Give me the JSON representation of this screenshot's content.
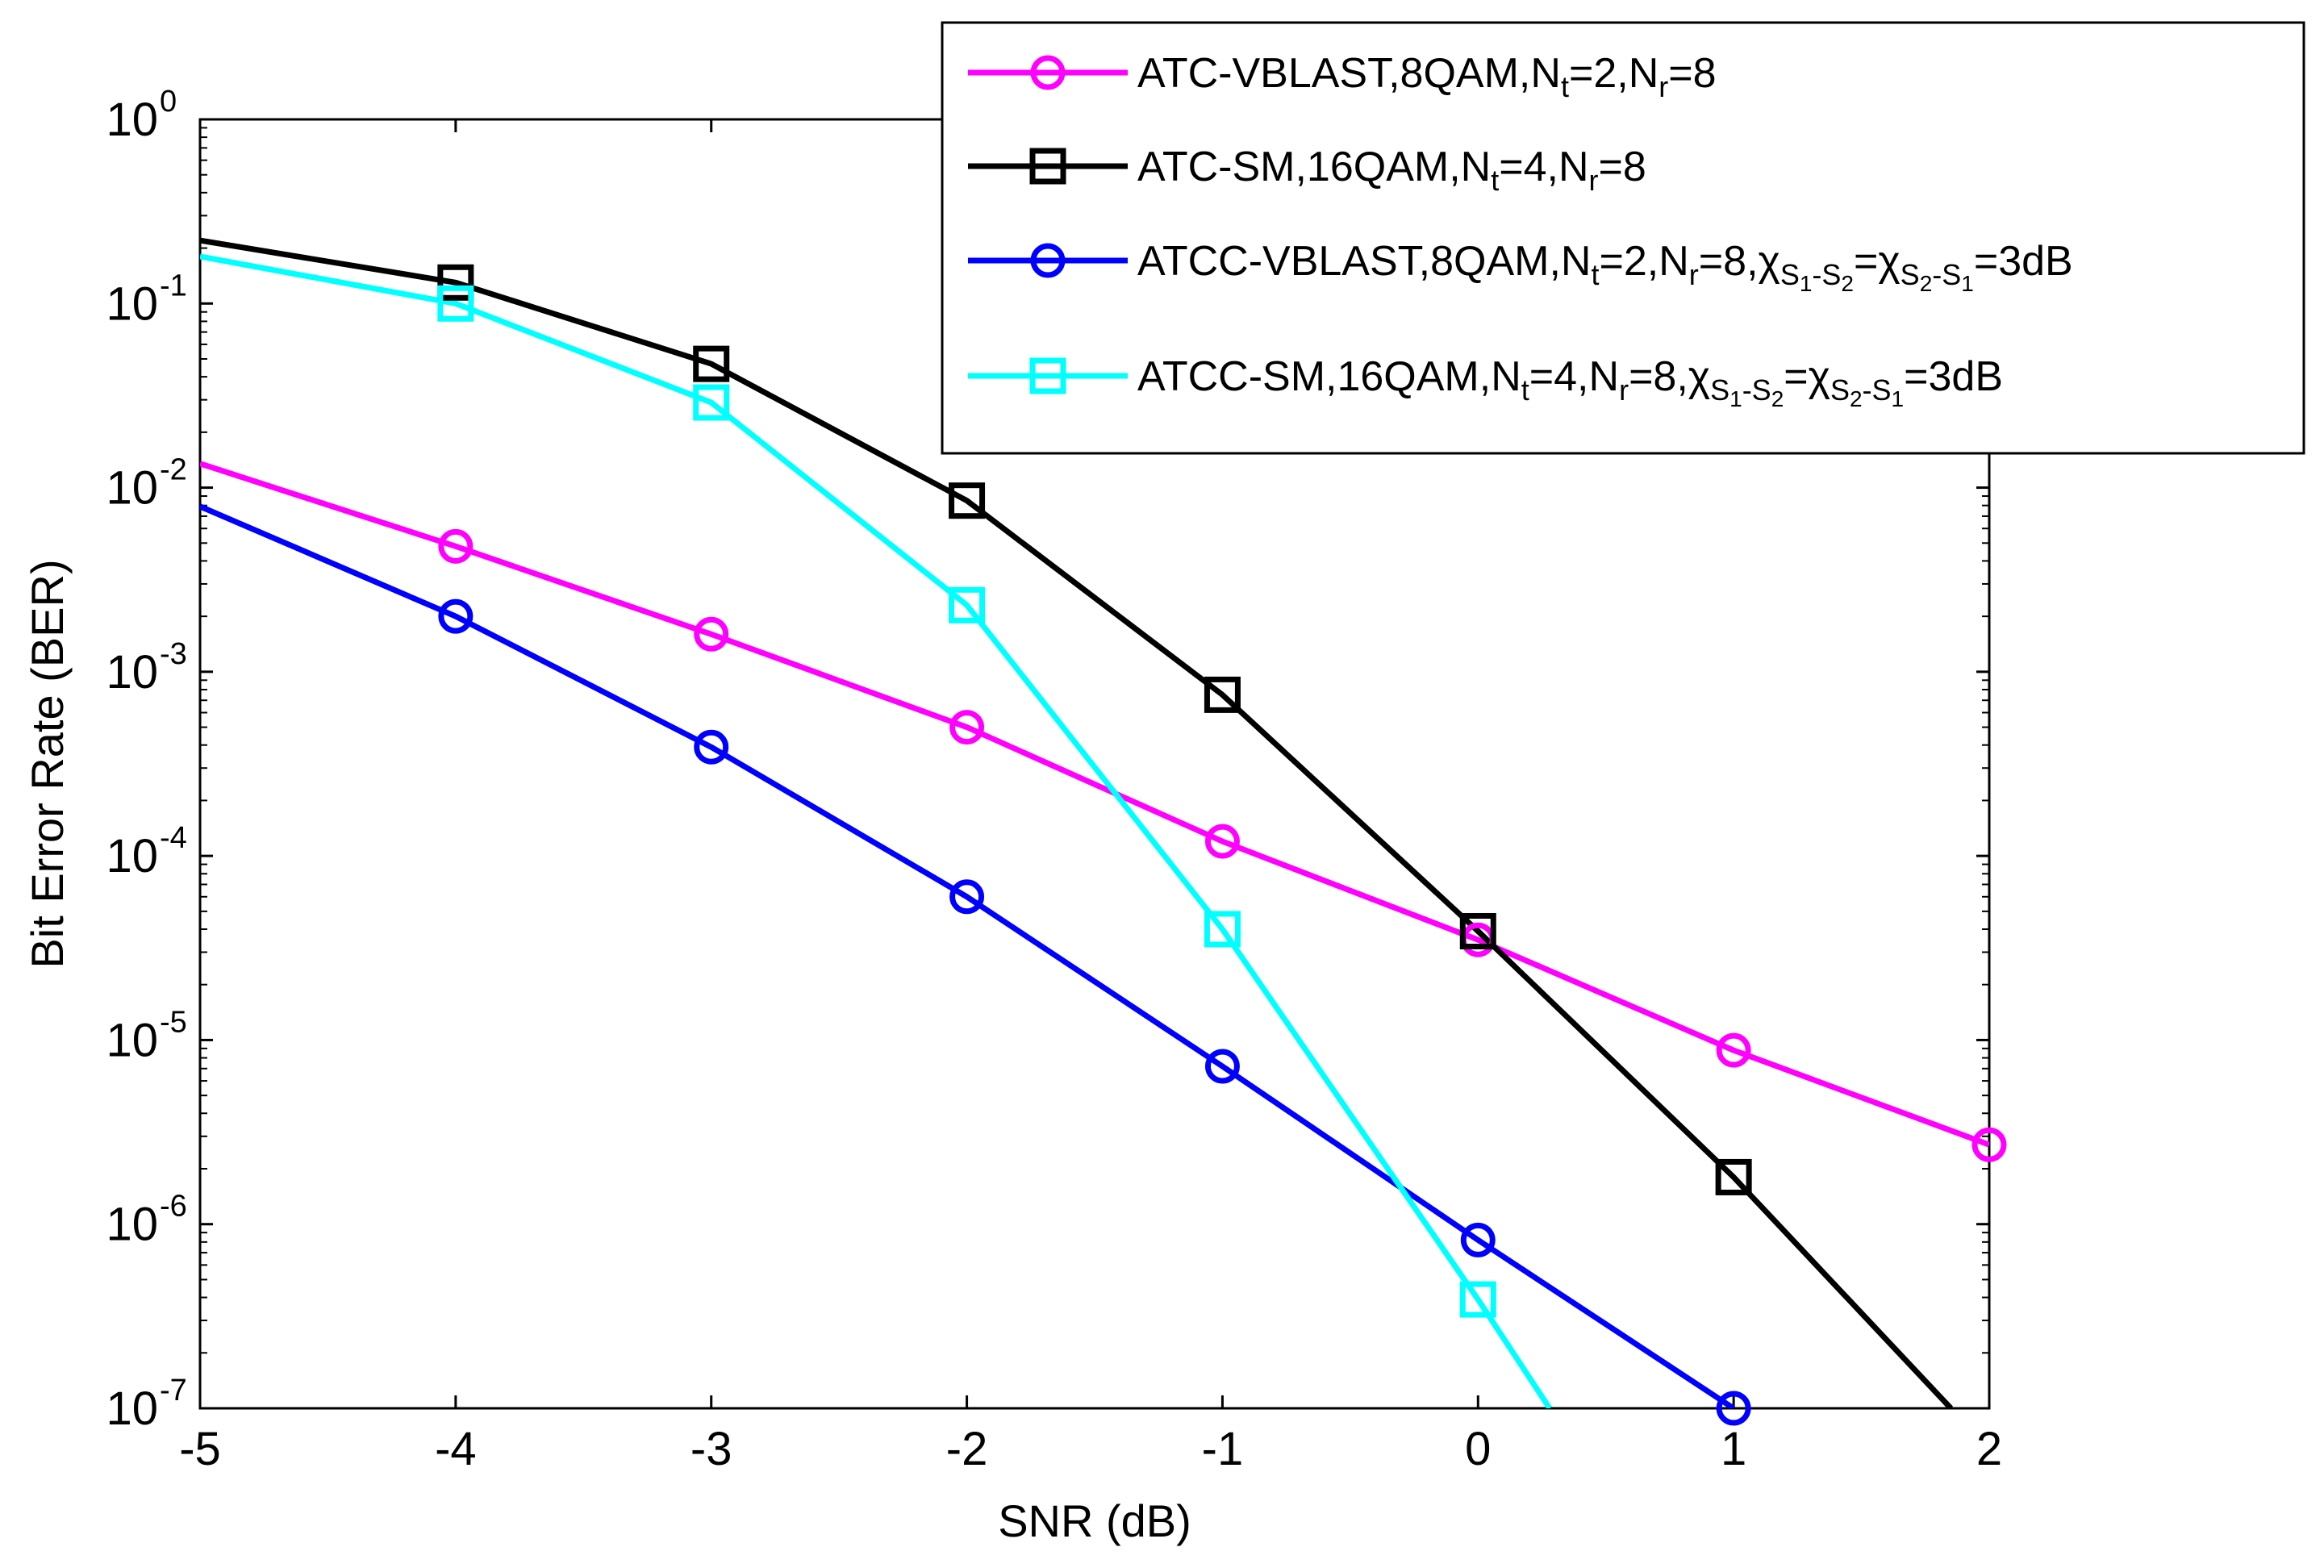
{
  "chart_data": {
    "type": "line",
    "title": "",
    "xlabel": "SNR (dB)",
    "ylabel": "Bit Error Rate (BER)",
    "yscale": "log",
    "xlim": [
      -5,
      2
    ],
    "ylim_exp": [
      -7,
      0
    ],
    "xticks": [
      "-5",
      "-4",
      "-3",
      "-2",
      "-1",
      "0",
      "1",
      "2"
    ],
    "yticks": [
      {
        "base": "10",
        "exp": "0"
      },
      {
        "base": "10",
        "exp": "-1"
      },
      {
        "base": "10",
        "exp": "-2"
      },
      {
        "base": "10",
        "exp": "-3"
      },
      {
        "base": "10",
        "exp": "-4"
      },
      {
        "base": "10",
        "exp": "-5"
      },
      {
        "base": "10",
        "exp": "-6"
      },
      {
        "base": "10",
        "exp": "-7"
      }
    ],
    "legend_position": "top-right",
    "series": [
      {
        "id": "atc-vblast",
        "name": "ATC-VBLAST,8QAM,Nt=2,Nr=8",
        "legend_parts": [
          {
            "t": "ATC-VBLAST,8QAM,N"
          },
          {
            "t": "t",
            "s": "sub"
          },
          {
            "t": "=2,N"
          },
          {
            "t": "r",
            "s": "sub"
          },
          {
            "t": "=8"
          }
        ],
        "color": "#ff00ff",
        "marker": "circle",
        "x": [
          -5,
          -4,
          -3,
          -2,
          -1,
          0,
          1,
          2
        ],
        "y": [
          0.0135,
          0.0048,
          0.0016,
          0.0005,
          0.00012,
          3.5e-05,
          8.8e-06,
          2.7e-06
        ],
        "marker_x": [
          -4,
          -3,
          -2,
          -1,
          0,
          1,
          2
        ]
      },
      {
        "id": "atc-sm",
        "name": "ATC-SM,16QAM,Nt=4,Nr=8",
        "legend_parts": [
          {
            "t": "ATC-SM,16QAM,N"
          },
          {
            "t": "t",
            "s": "sub"
          },
          {
            "t": "=4,N"
          },
          {
            "t": "r",
            "s": "sub"
          },
          {
            "t": "=8"
          }
        ],
        "color": "#000000",
        "marker": "square",
        "x": [
          -5,
          -4,
          -3,
          -2,
          -1,
          0,
          1,
          1.85
        ],
        "y": [
          0.22,
          0.13,
          0.047,
          0.0085,
          0.00075,
          3.9e-05,
          1.8e-06,
          1e-07
        ],
        "marker_x": [
          -4,
          -3,
          -2,
          -1,
          0,
          1
        ]
      },
      {
        "id": "atcc-vblast",
        "name": "ATCC-VBLAST,8QAM,Nt=2,Nr=8,χS1-S2=χS2-S1=3dB",
        "legend_parts": [
          {
            "t": "ATCC-VBLAST,8QAM,N"
          },
          {
            "t": "t",
            "s": "sub"
          },
          {
            "t": "=2,N"
          },
          {
            "t": "r",
            "s": "sub"
          },
          {
            "t": "=8,χ"
          },
          {
            "t": "S",
            "s": "sub"
          },
          {
            "t": "1",
            "s": "sub2"
          },
          {
            "t": "-S",
            "s": "sub"
          },
          {
            "t": "2",
            "s": "sub2"
          },
          {
            "t": "=χ"
          },
          {
            "t": "S",
            "s": "sub"
          },
          {
            "t": "2",
            "s": "sub2"
          },
          {
            "t": "-S",
            "s": "sub"
          },
          {
            "t": "1",
            "s": "sub2"
          },
          {
            "t": "=3dB"
          }
        ],
        "color": "#0000ff",
        "marker": "circle",
        "x": [
          -5,
          -4,
          -3,
          -2,
          -1,
          0,
          1
        ],
        "y": [
          0.0079,
          0.002,
          0.00039,
          6e-05,
          7.2e-06,
          8.2e-07,
          1e-07
        ],
        "marker_x": [
          -4,
          -3,
          -2,
          -1,
          0,
          1
        ]
      },
      {
        "id": "atcc-sm",
        "name": "ATCC-SM,16QAM,Nt=4,Nr=8,χS1-S2=χS2-S1=3dB",
        "legend_parts": [
          {
            "t": "ATCC-SM,16QAM,N"
          },
          {
            "t": "t",
            "s": "sub"
          },
          {
            "t": "=4,N"
          },
          {
            "t": "r",
            "s": "sub"
          },
          {
            "t": "=8,χ"
          },
          {
            "t": "S",
            "s": "sub"
          },
          {
            "t": "1",
            "s": "sub2"
          },
          {
            "t": "-S",
            "s": "sub"
          },
          {
            "t": "2",
            "s": "sub2"
          },
          {
            "t": "=χ"
          },
          {
            "t": "S",
            "s": "sub"
          },
          {
            "t": "2",
            "s": "sub2"
          },
          {
            "t": "-S",
            "s": "sub"
          },
          {
            "t": "1",
            "s": "sub2"
          },
          {
            "t": "=3dB"
          }
        ],
        "color": "#00ffff",
        "marker": "square",
        "x": [
          -5,
          -4,
          -3,
          -2,
          -1,
          0,
          0.28
        ],
        "y": [
          0.18,
          0.1,
          0.029,
          0.0023,
          4e-05,
          3.9e-07,
          1e-07
        ],
        "marker_x": [
          -4,
          -3,
          -2,
          -1,
          0
        ]
      }
    ]
  }
}
